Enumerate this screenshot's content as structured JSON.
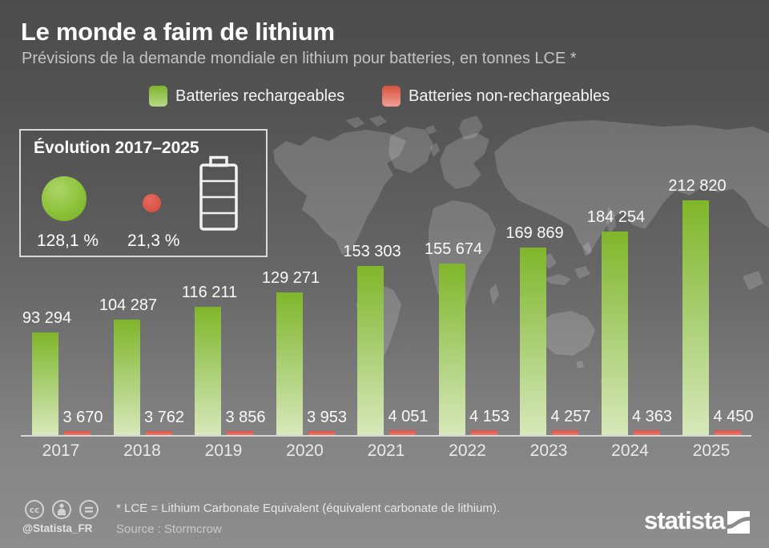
{
  "header": {
    "title": "Le monde a faim de lithium",
    "subtitle": "Prévisions de la demande mondiale en lithium pour batteries, en tonnes LCE *"
  },
  "legend": {
    "rechargeable_label": "Batteries rechargeables",
    "non_rechargeable_label": "Batteries non-rechargeables"
  },
  "evolution_box": {
    "title": "Évolution 2017–2025",
    "green_change": "128,1 %",
    "red_change": "21,3 %",
    "icons": [
      "growth-circle-green",
      "growth-circle-red",
      "battery-icon"
    ]
  },
  "chart_data": {
    "type": "bar",
    "title": "Prévisions de la demande mondiale en lithium pour batteries, en tonnes LCE",
    "categories": [
      "2017",
      "2018",
      "2019",
      "2020",
      "2021",
      "2022",
      "2023",
      "2024",
      "2025"
    ],
    "series": [
      {
        "name": "Batteries rechargeables",
        "color": "#80b62a",
        "values": [
          93294,
          104287,
          116211,
          129271,
          153303,
          155674,
          169869,
          184254,
          212820
        ],
        "labels": [
          "93 294",
          "104 287",
          "116 211",
          "129 271",
          "153 303",
          "155 674",
          "169 869",
          "184 254",
          "212 820"
        ]
      },
      {
        "name": "Batteries non-rechargeables",
        "color": "#e2564a",
        "values": [
          3670,
          3762,
          3856,
          3953,
          4051,
          4153,
          4257,
          4363,
          4450
        ],
        "labels": [
          "3 670",
          "3 762",
          "3 856",
          "3 953",
          "4 051",
          "4 153",
          "4 257",
          "4 363",
          "4 450"
        ]
      }
    ],
    "ylim": [
      0,
      212820
    ],
    "value_labels": true,
    "grid": false,
    "legend_position": "top"
  },
  "footer": {
    "license_icons": [
      "cc-icon",
      "attribution-icon",
      "no-derivatives-icon"
    ],
    "handle": "@Statista_FR",
    "note": "* LCE = Lithium Carbonate Equivalent (équivalent carbonate de lithium).",
    "source": "Source : Stormcrow",
    "brand": "statista"
  },
  "colors": {
    "green_bar_top": "#80b62a",
    "green_bar_bottom": "#d7e8ba",
    "red_bar": "#e2564a",
    "background_top": "#4c4c4c",
    "background_bottom": "#8d8d8d",
    "axis_line": "#d6d6d6",
    "text_primary": "#ffffff",
    "text_secondary": "#c3c3c3"
  }
}
